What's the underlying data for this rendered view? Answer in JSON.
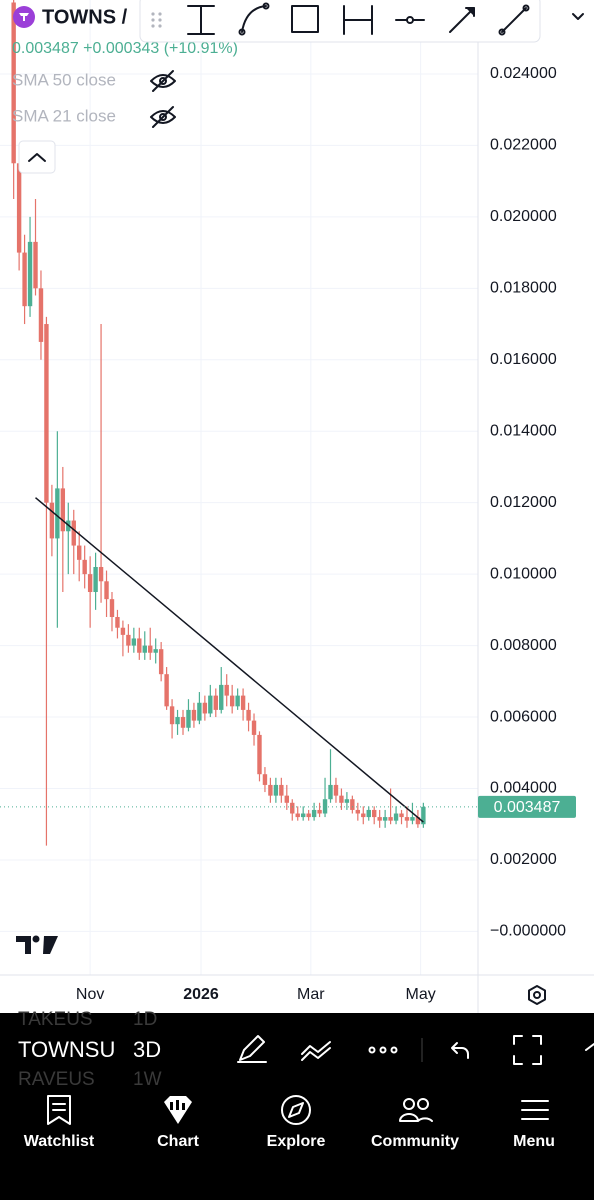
{
  "header": {
    "symbol": "TOWNS /",
    "quote": "0.003487 +0.000343 (+10.91%)",
    "indicators": [
      "SMA 50 close",
      "SMA 21 close"
    ]
  },
  "chart_data": {
    "type": "candlestick",
    "categories": [
      null,
      null,
      null,
      null,
      null,
      null,
      null,
      null,
      null,
      null,
      null,
      null,
      null,
      null,
      null,
      null,
      null,
      null,
      null,
      null,
      null,
      null,
      null,
      null,
      null,
      null,
      null,
      null,
      null,
      null,
      null,
      null,
      null,
      null,
      null,
      null,
      null,
      null,
      null,
      null,
      null,
      null,
      null,
      null,
      null,
      null,
      null,
      null,
      null,
      null,
      null,
      null,
      null,
      null,
      null,
      null,
      null,
      null,
      null,
      null,
      null,
      null,
      null,
      null,
      null,
      null,
      null,
      null,
      null,
      null,
      null,
      null,
      null,
      null,
      null,
      null
    ],
    "open": [
      0.026,
      0.0215,
      0.019,
      0.0175,
      0.0193,
      0.018,
      0.017,
      0.012,
      0.011,
      0.0124,
      0.0112,
      0.0115,
      0.0108,
      0.0104,
      0.01,
      0.0095,
      0.0102,
      0.0098,
      0.0093,
      0.0088,
      0.0085,
      0.0083,
      0.008,
      0.0082,
      0.0078,
      0.008,
      0.0078,
      0.0079,
      0.0072,
      0.0063,
      0.0058,
      0.006,
      0.0057,
      0.0062,
      0.0059,
      0.0064,
      0.0061,
      0.0066,
      0.0062,
      0.0069,
      0.0066,
      0.0063,
      0.0066,
      0.0062,
      0.0059,
      0.0055,
      0.0044,
      0.0041,
      0.0038,
      0.0041,
      0.0038,
      0.0036,
      0.0033,
      0.0032,
      0.0033,
      0.0032,
      0.0034,
      0.0033,
      0.0037,
      0.0041,
      0.0038,
      0.0036,
      0.0037,
      0.0034,
      0.0033,
      0.0032,
      0.0034,
      0.0032,
      0.0031,
      0.0032,
      0.0031,
      0.0033,
      0.0032,
      0.0031,
      0.0032,
      0.003
    ],
    "high": [
      0.0261,
      0.022,
      0.0195,
      0.02,
      0.0205,
      0.0185,
      0.0172,
      0.0125,
      0.014,
      0.013,
      0.012,
      0.0118,
      0.0112,
      0.0108,
      0.0105,
      0.0106,
      0.017,
      0.0101,
      0.0095,
      0.009,
      0.0087,
      0.0086,
      0.0085,
      0.0085,
      0.0084,
      0.0085,
      0.0082,
      0.0081,
      0.0074,
      0.0065,
      0.0062,
      0.0062,
      0.0065,
      0.0064,
      0.0067,
      0.0066,
      0.0069,
      0.0068,
      0.0074,
      0.0072,
      0.0069,
      0.0068,
      0.0068,
      0.0064,
      0.0061,
      0.0056,
      0.0046,
      0.0043,
      0.0043,
      0.0043,
      0.0041,
      0.0037,
      0.0035,
      0.0035,
      0.0034,
      0.0036,
      0.0036,
      0.0043,
      0.0051,
      0.0043,
      0.004,
      0.0039,
      0.0038,
      0.0036,
      0.0035,
      0.0035,
      0.0035,
      0.0034,
      0.0034,
      0.004,
      0.0035,
      0.0034,
      0.0035,
      0.0036,
      0.0034,
      0.0036
    ],
    "low": [
      0.0205,
      0.0185,
      0.017,
      0.0172,
      0.0178,
      0.016,
      0.0024,
      0.0105,
      0.0085,
      0.0095,
      0.01,
      0.01,
      0.0098,
      0.0096,
      0.0085,
      0.009,
      0.0092,
      0.0088,
      0.0084,
      0.0082,
      0.0077,
      0.0078,
      0.0078,
      0.0076,
      0.0076,
      0.0076,
      0.0075,
      0.007,
      0.0062,
      0.0054,
      0.0055,
      0.0055,
      0.0056,
      0.0057,
      0.0058,
      0.0059,
      0.006,
      0.006,
      0.0061,
      0.0063,
      0.0061,
      0.0062,
      0.0059,
      0.0056,
      0.0052,
      0.0042,
      0.0039,
      0.0036,
      0.0036,
      0.0036,
      0.0034,
      0.0031,
      0.0031,
      0.0031,
      0.0031,
      0.0031,
      0.0032,
      0.0032,
      0.0036,
      0.0036,
      0.0034,
      0.0034,
      0.0033,
      0.0031,
      0.003,
      0.0031,
      0.003,
      0.0029,
      0.0029,
      0.003,
      0.003,
      0.003,
      0.0029,
      0.003,
      0.0029,
      0.0029
    ],
    "close": [
      0.0215,
      0.019,
      0.0175,
      0.0193,
      0.018,
      0.0165,
      0.012,
      0.011,
      0.0124,
      0.0112,
      0.0115,
      0.0108,
      0.0104,
      0.01,
      0.0095,
      0.0102,
      0.0098,
      0.0093,
      0.0088,
      0.0085,
      0.0083,
      0.008,
      0.0082,
      0.0078,
      0.008,
      0.0078,
      0.0079,
      0.0072,
      0.0063,
      0.0058,
      0.006,
      0.0057,
      0.0062,
      0.0059,
      0.0064,
      0.0061,
      0.0066,
      0.0062,
      0.0069,
      0.0066,
      0.0063,
      0.0066,
      0.0062,
      0.0059,
      0.0055,
      0.0044,
      0.0041,
      0.0038,
      0.0041,
      0.0038,
      0.0036,
      0.0033,
      0.0032,
      0.0033,
      0.0032,
      0.0034,
      0.0033,
      0.0037,
      0.0041,
      0.0038,
      0.0036,
      0.0037,
      0.0034,
      0.0033,
      0.0032,
      0.0034,
      0.0032,
      0.0031,
      0.0032,
      0.0031,
      0.0033,
      0.0032,
      0.0031,
      0.0032,
      0.003,
      0.003487
    ],
    "up_color": "#4caf93",
    "down_color": "#e5736a",
    "last_price": {
      "value": 0.003487,
      "label": "0.003487"
    },
    "trendline": {
      "x": [
        4,
        75
      ],
      "values": [
        0.01214,
        0.00306
      ]
    },
    "xlim": [
      -2.5,
      85
    ],
    "xticks": [
      {
        "value": 14,
        "label": "Nov"
      },
      {
        "value": 34.3,
        "label": "2026"
      },
      {
        "value": 54.4,
        "label": "Mar"
      },
      {
        "value": 74.5,
        "label": "May"
      }
    ],
    "ylim": [
      -0.00122,
      0.02607
    ],
    "yticks": [
      {
        "value": 0.024,
        "label": "0.024000"
      },
      {
        "value": 0.022,
        "label": "0.022000"
      },
      {
        "value": 0.02,
        "label": "0.020000"
      },
      {
        "value": 0.018,
        "label": "0.018000"
      },
      {
        "value": 0.016,
        "label": "0.016000"
      },
      {
        "value": 0.014,
        "label": "0.014000"
      },
      {
        "value": 0.012,
        "label": "0.012000"
      },
      {
        "value": 0.01,
        "label": "0.010000"
      },
      {
        "value": 0.008,
        "label": "0.008000"
      },
      {
        "value": 0.006,
        "label": "0.006000"
      },
      {
        "value": 0.004,
        "label": "0.004000"
      },
      {
        "value": 0.002,
        "label": "0.002000"
      },
      {
        "value": 0,
        "label": "−0.000000"
      }
    ],
    "grid": true
  },
  "toolbar": {
    "symbol": "TOWNSU",
    "interval": "3D",
    "faded": [
      [
        "TAKEUS",
        "1D"
      ],
      [
        "RAVEUS",
        "1W"
      ]
    ]
  },
  "nav": [
    "Watchlist",
    "Chart",
    "Explore",
    "Community",
    "Menu"
  ]
}
